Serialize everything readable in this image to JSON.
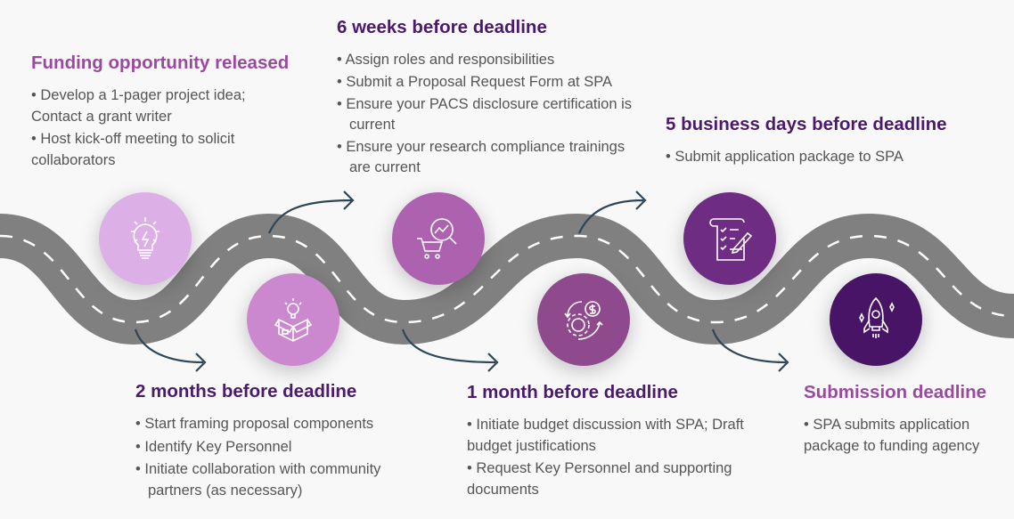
{
  "milestones": [
    {
      "title": "Funding opportunity released",
      "items": [
        "• Develop a 1-pager project idea; Contact a grant writer",
        "• Host kick-off meeting to solicit collaborators"
      ],
      "icon": "lightbulb-icon",
      "color": "#dcb0e6"
    },
    {
      "title": "2 months before deadline",
      "items": [
        "•  Start framing proposal components",
        "•  Identify Key Personnel",
        "•  Initiate collaboration with community partners (as necessary)"
      ],
      "icon": "idea-box-icon",
      "color": "#cc88cf"
    },
    {
      "title": "6 weeks before deadline",
      "items": [
        "•  Assign roles and responsibilities",
        "•  Submit a Proposal Request Form at SPA",
        "•  Ensure your PACS disclosure certification is current",
        "•  Ensure your research compliance trainings are current"
      ],
      "icon": "cart-analytics-icon",
      "color": "#ad62b0"
    },
    {
      "title": "1 month before deadline",
      "items": [
        "• Initiate budget discussion with SPA; Draft budget justifications",
        "•  Request Key Personnel and supporting documents"
      ],
      "icon": "gear-dollar-icon",
      "color": "#8e4a8d"
    },
    {
      "title": "5 business days before deadline",
      "items": [
        "• Submit application package to SPA"
      ],
      "icon": "checklist-icon",
      "color": "#6e2c83"
    },
    {
      "title": "Submission deadline",
      "items": [
        "• SPA submits application package to funding agency"
      ],
      "icon": "rocket-icon",
      "color": "#481566"
    }
  ]
}
